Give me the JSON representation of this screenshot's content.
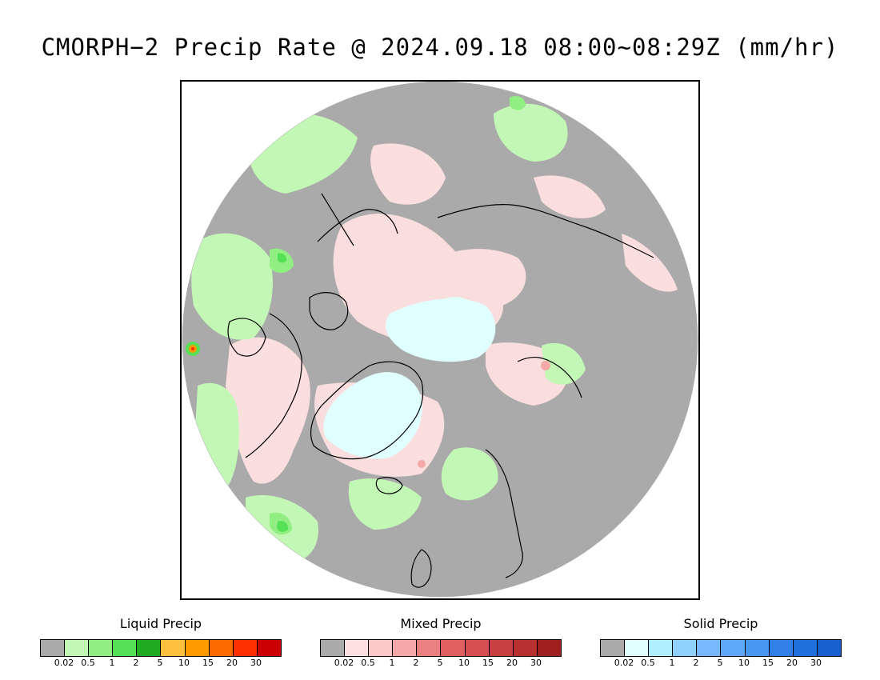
{
  "title": "CMORPH−2 Precip Rate @ 2024.09.18 08:00~08:29Z (mm/hr)",
  "map": {
    "projection": "north polar stereographic",
    "background_color": "#aaaaaa",
    "coastline_color": "#000000"
  },
  "legends": [
    {
      "title": "Liquid Precip",
      "ticks": [
        "0.02",
        "0.5",
        "1",
        "2",
        "5",
        "10",
        "15",
        "20",
        "30"
      ],
      "colors": [
        "#aaaaaa",
        "#c2f7b6",
        "#90ee82",
        "#55e055",
        "#22aa22",
        "#ffc040",
        "#ff9a00",
        "#ff6a00",
        "#ff3000",
        "#cc0000"
      ]
    },
    {
      "title": "Mixed Precip",
      "ticks": [
        "0.02",
        "0.5",
        "1",
        "2",
        "5",
        "10",
        "15",
        "20",
        "30"
      ],
      "colors": [
        "#aaaaaa",
        "#ffe0e0",
        "#ffc8c8",
        "#f5a8a8",
        "#eb8080",
        "#e06060",
        "#d55050",
        "#c84040",
        "#b83030",
        "#a02020"
      ]
    },
    {
      "title": "Solid Precip",
      "ticks": [
        "0.02",
        "0.5",
        "1",
        "2",
        "5",
        "10",
        "15",
        "20",
        "30"
      ],
      "colors": [
        "#aaaaaa",
        "#e0ffff",
        "#b0efff",
        "#90d0ff",
        "#78b8ff",
        "#60a8f8",
        "#4898f0",
        "#3080e8",
        "#2070e0",
        "#1860d0"
      ]
    }
  ]
}
